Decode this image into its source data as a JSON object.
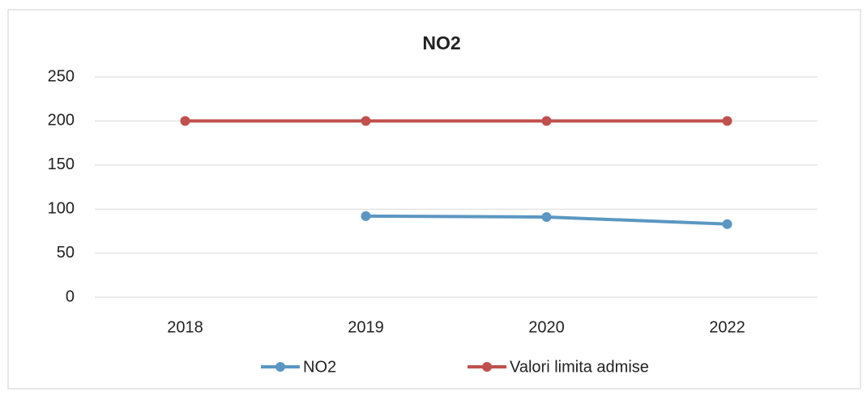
{
  "chart_data": {
    "type": "line",
    "title": "NO2",
    "categories": [
      "2018",
      "2019",
      "2020",
      "2022"
    ],
    "series": [
      {
        "name": "NO2",
        "color": "#5b97c2",
        "values": [
          null,
          92,
          91,
          83
        ]
      },
      {
        "name": "Valori limita admise",
        "color": "#c0504d",
        "values": [
          200,
          200,
          200,
          200
        ]
      }
    ],
    "ylim": [
      0,
      250
    ],
    "yticks": [
      0,
      50,
      100,
      150,
      200,
      250
    ],
    "grid": true,
    "legend": "bottom"
  }
}
